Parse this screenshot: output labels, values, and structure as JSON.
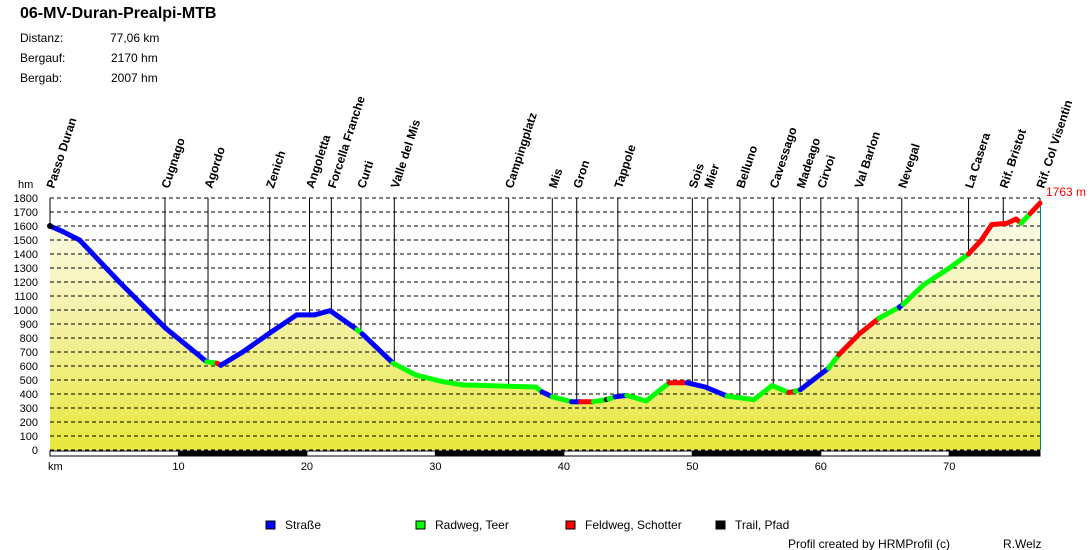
{
  "header": {
    "title": "06-MV-Duran-Prealpi-MTB",
    "stats": [
      {
        "label": "Distanz:",
        "value": "77,06 km"
      },
      {
        "label": "Bergauf:",
        "value": "2170 hm"
      },
      {
        "label": "Bergab:",
        "value": "2007 hm"
      }
    ]
  },
  "footer": {
    "credit": "Profil created by HRMProfil (c)",
    "author": "R.Welz"
  },
  "chart_data": {
    "type": "area",
    "title": "06-MV-Duran-Prealpi-MTB",
    "xlabel": "km",
    "ylabel": "hm",
    "xlim": [
      0,
      77.06
    ],
    "ylim": [
      0,
      1800
    ],
    "yticks": [
      0,
      100,
      200,
      300,
      400,
      500,
      600,
      700,
      800,
      900,
      1000,
      1100,
      1200,
      1300,
      1400,
      1500,
      1600,
      1700,
      1800
    ],
    "xticks": [
      10,
      20,
      30,
      40,
      50,
      60,
      70
    ],
    "grid": true,
    "end_label": "1763 m",
    "surfaces": {
      "S": {
        "name": "Straße",
        "color": "#0000ff"
      },
      "R": {
        "name": "Radweg, Teer",
        "color": "#00ff00"
      },
      "F": {
        "name": "Feldweg, Schotter",
        "color": "#ff0000"
      },
      "T": {
        "name": "Trail, Pfad",
        "color": "#000000"
      }
    },
    "legend_order": [
      "S",
      "R",
      "F",
      "T"
    ],
    "legend_position": "bottom",
    "points": [
      [
        0,
        1600,
        "S"
      ],
      [
        1,
        1560,
        "S"
      ],
      [
        2.3,
        1500,
        "S"
      ],
      [
        5.4,
        1200,
        "S"
      ],
      [
        9,
        870,
        "S"
      ],
      [
        11,
        720,
        "S"
      ],
      [
        12.2,
        630,
        "R"
      ],
      [
        13,
        620,
        "F"
      ],
      [
        13.3,
        605,
        "S"
      ],
      [
        15,
        700,
        "S"
      ],
      [
        17.1,
        835,
        "S"
      ],
      [
        19.2,
        965,
        "S"
      ],
      [
        20.6,
        965,
        "S"
      ],
      [
        21.8,
        995,
        "S"
      ],
      [
        23.9,
        860,
        "R"
      ],
      [
        24.3,
        830,
        "S"
      ],
      [
        26.7,
        620,
        "R"
      ],
      [
        28.5,
        535,
        "R"
      ],
      [
        30.5,
        490,
        "R"
      ],
      [
        32.1,
        465,
        "R"
      ],
      [
        37.8,
        450,
        "R"
      ],
      [
        38.3,
        415,
        "S"
      ],
      [
        39.1,
        380,
        "R"
      ],
      [
        40.6,
        345,
        "S"
      ],
      [
        41.3,
        345,
        "F"
      ],
      [
        42.3,
        345,
        "R"
      ],
      [
        43.3,
        360,
        "T"
      ],
      [
        43.5,
        365,
        "R"
      ],
      [
        44,
        380,
        "S"
      ],
      [
        44.9,
        390,
        "R"
      ],
      [
        46.4,
        350,
        "R"
      ],
      [
        48.2,
        480,
        "F"
      ],
      [
        49.6,
        480,
        "S"
      ],
      [
        51,
        450,
        "S"
      ],
      [
        52.7,
        385,
        "R"
      ],
      [
        54.8,
        360,
        "R"
      ],
      [
        56.2,
        460,
        "R"
      ],
      [
        57.5,
        410,
        "F"
      ],
      [
        58,
        420,
        "R"
      ],
      [
        58.4,
        430,
        "S"
      ],
      [
        60.6,
        585,
        "R"
      ],
      [
        61.4,
        680,
        "F"
      ],
      [
        63,
        830,
        "F"
      ],
      [
        64.5,
        940,
        "R"
      ],
      [
        66.1,
        1020,
        "S"
      ],
      [
        66.4,
        1040,
        "R"
      ],
      [
        68,
        1180,
        "R"
      ],
      [
        70,
        1300,
        "R"
      ],
      [
        71.5,
        1400,
        "F"
      ],
      [
        72.5,
        1500,
        "F"
      ],
      [
        73.3,
        1610,
        "F"
      ],
      [
        74.5,
        1620,
        "F"
      ],
      [
        75.2,
        1650,
        "F"
      ],
      [
        75.6,
        1620,
        "R"
      ],
      [
        76.3,
        1690,
        "F"
      ],
      [
        77.06,
        1763,
        "F"
      ]
    ],
    "waypoints": [
      {
        "name": "Passo Duran",
        "km": 0
      },
      {
        "name": "Cugnago",
        "km": 8.95
      },
      {
        "name": "Agordo",
        "km": 12.3
      },
      {
        "name": "Zenich",
        "km": 17.1
      },
      {
        "name": "Angoletta",
        "km": 20.2
      },
      {
        "name": "Forcella Franche",
        "km": 21.9
      },
      {
        "name": "Curti",
        "km": 24.2
      },
      {
        "name": "Valle del Mis",
        "km": 26.8
      },
      {
        "name": "Campingplatz",
        "km": 35.7
      },
      {
        "name": "Mis",
        "km": 39.1
      },
      {
        "name": "Gron",
        "km": 41.0
      },
      {
        "name": "Tappole",
        "km": 44.2
      },
      {
        "name": "Sois",
        "km": 50.0
      },
      {
        "name": "Mier",
        "km": 51.2
      },
      {
        "name": "Belluno",
        "km": 53.7
      },
      {
        "name": "Cavessago",
        "km": 56.3
      },
      {
        "name": "Madeago",
        "km": 58.4
      },
      {
        "name": "Cirvoi",
        "km": 60.0
      },
      {
        "name": "Val Barlon",
        "km": 62.9
      },
      {
        "name": "Nevegal",
        "km": 66.3
      },
      {
        "name": "La Casera",
        "km": 71.5
      },
      {
        "name": "Rif. Bristot",
        "km": 74.2
      },
      {
        "name": "Rif. Col Visentin",
        "km": 77.06
      }
    ]
  }
}
